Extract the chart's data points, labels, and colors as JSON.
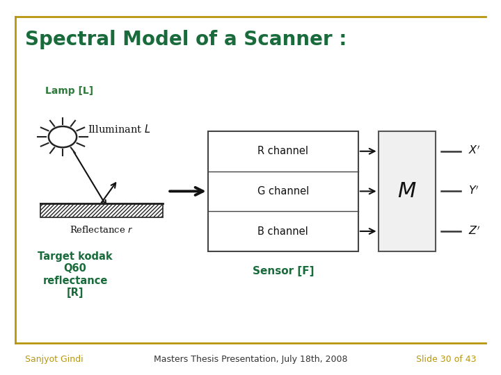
{
  "title": "Spectral Model of a Scanner :",
  "title_color": "#1a6b3c",
  "title_fontsize": 20,
  "bg_color": "#ffffff",
  "border_color": "#b8960c",
  "lamp_label": "Lamp [L]",
  "lamp_label_color": "#2d7a3a",
  "illuminant_text": "Illuminant $L$",
  "reflectance_text": "Reflectance $r$",
  "target_text": "Target kodak\nQ60\nreflectance\n[R]",
  "target_text_color": "#1a6b3c",
  "sensor_label": "Sensor [F]",
  "sensor_label_color": "#1a6b3c",
  "channels": [
    "R channel",
    "G channel",
    "B channel"
  ],
  "channel_box_color": "#ffffff",
  "channel_box_edge": "#444444",
  "matrix_box_color": "#f0f0f0",
  "matrix_box_edge": "#555555",
  "arrow_color": "#111111",
  "footer_left": "Sanjyot Gindi",
  "footer_center": "Masters Thesis Presentation, July 18th, 2008",
  "footer_right": "Slide 30 of 43",
  "footer_color": "#b8960c",
  "footer_center_color": "#333333"
}
